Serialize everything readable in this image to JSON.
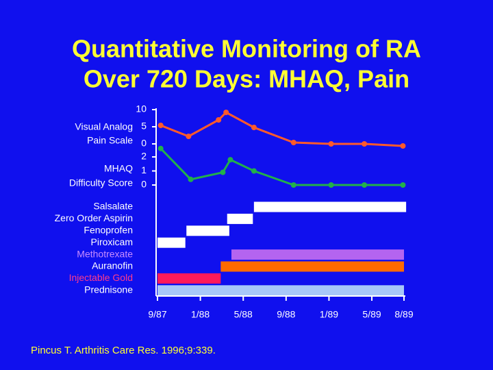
{
  "title": [
    "Quantitative Monitoring of RA",
    "Over 720 Days: MHAQ, Pain"
  ],
  "source": "Pincus T. Arthritis Care Res. 1996;9:339.",
  "chart_data": [
    {
      "type": "line",
      "ylabel": [
        "Visual Analog",
        "Pain Scale"
      ],
      "ylim": [
        0,
        10
      ],
      "yticks": [
        10,
        5,
        0
      ],
      "xlim": [
        0,
        23
      ],
      "series": [
        {
          "color": "#ff5a2a",
          "x": [
            0.3,
            2.9,
            5.7,
            6.4,
            9.0,
            12.7,
            16.2,
            19.3,
            22.9
          ],
          "values": [
            5.4,
            2.2,
            7,
            9.2,
            4.8,
            0.4,
            0,
            0,
            -0.6
          ]
        }
      ]
    },
    {
      "type": "line",
      "ylabel": [
        "MHAQ",
        "Difficulty Score"
      ],
      "ylim": [
        0,
        2
      ],
      "yticks": [
        2,
        1,
        0
      ],
      "xlim": [
        0,
        23
      ],
      "series": [
        {
          "color": "#22b04a",
          "x": [
            0.3,
            3.1,
            6.1,
            6.8,
            9.0,
            12.7,
            16.2,
            19.3,
            22.9
          ],
          "values": [
            2.6,
            0.4,
            0.9,
            1.8,
            1.0,
            0,
            0,
            0,
            0
          ]
        }
      ]
    },
    {
      "type": "gantt",
      "xlim": [
        0,
        23
      ],
      "xticks": [
        {
          "value": 0,
          "label": "9/87"
        },
        {
          "value": 4,
          "label": "1/88"
        },
        {
          "value": 8,
          "label": "5/88"
        },
        {
          "value": 12,
          "label": "9/88"
        },
        {
          "value": 16,
          "label": "1/89"
        },
        {
          "value": 20,
          "label": "5/89"
        },
        {
          "value": 23,
          "label": "8/89"
        }
      ],
      "categories": [
        "Salsalate",
        "Zero Order Aspirin",
        "Fenoprofen",
        "Piroxicam",
        "Methotrexate",
        "Auranofin",
        "Injectable Gold",
        "Prednisone"
      ],
      "label_colors": [
        "#ffffff",
        "#ffffff",
        "#ffffff",
        "#ffffff",
        "#c98cff",
        "#ffffff",
        "#ff3c8c",
        "#ffffff"
      ],
      "colors": [
        "#ffffff",
        "#ffffff",
        "#ffffff",
        "#ffffff",
        "#b464f0",
        "#ff6a00",
        "#ff1a5a",
        "#a8c8f8"
      ],
      "start": [
        9.0,
        6.5,
        2.7,
        0,
        6.9,
        5.9,
        0,
        0
      ],
      "end": [
        23.2,
        8.9,
        6.7,
        2.6,
        23,
        23,
        5.9,
        23
      ]
    }
  ]
}
